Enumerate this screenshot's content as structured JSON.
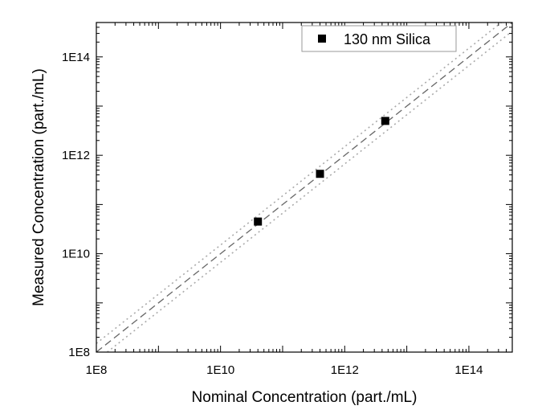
{
  "chart_data": {
    "type": "scatter",
    "title": "",
    "xlabel": "Nominal Concentration (part./mL)",
    "ylabel": "Measured Concentration (part./mL)",
    "xscale": "log",
    "yscale": "log",
    "xlim": [
      100000000.0,
      500000000000000.0
    ],
    "ylim": [
      100000000.0,
      500000000000000.0
    ],
    "x_tick_labels": [
      "1E8",
      "1E10",
      "1E12",
      "1E14"
    ],
    "y_tick_labels": [
      "1E8",
      "1E10",
      "1E12",
      "1E14"
    ],
    "grid": false,
    "legend_position": "top-right",
    "series": [
      {
        "name": "130 nm Silica",
        "marker": "square",
        "color": "#000000",
        "x": [
          40000000000.0,
          400000000000.0,
          4500000000000.0
        ],
        "y": [
          45000000000.0,
          420000000000.0,
          5000000000000.0
        ]
      }
    ],
    "reference_lines": [
      {
        "style": "dashed",
        "color": "#666666",
        "slope": 1.0
      },
      {
        "style": "dotted",
        "color": "#aaaaaa",
        "slope": 1.0,
        "factor": 1.5
      },
      {
        "style": "dotted",
        "color": "#aaaaaa",
        "slope": 1.0,
        "factor": 0.6667
      }
    ]
  }
}
